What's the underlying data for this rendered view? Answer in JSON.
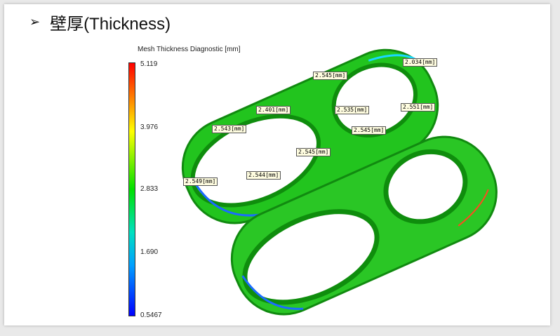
{
  "heading": {
    "bullet": "➢",
    "text": "壁厚(Thickness)"
  },
  "diagnostic": {
    "title": "Mesh Thickness Diagnostic [mm]",
    "scale": [
      "5.119",
      "3.976",
      "2.833",
      "1.690",
      "0.5467"
    ]
  },
  "labels": [
    "2.545[mm]",
    "2.034[mm]",
    "2.401[mm]",
    "2.535[mm]",
    "2.551[mm]",
    "2.543[mm]",
    "2.545[mm]",
    "2.545[mm]",
    "2.544[mm]",
    "2.549[mm]"
  ]
}
